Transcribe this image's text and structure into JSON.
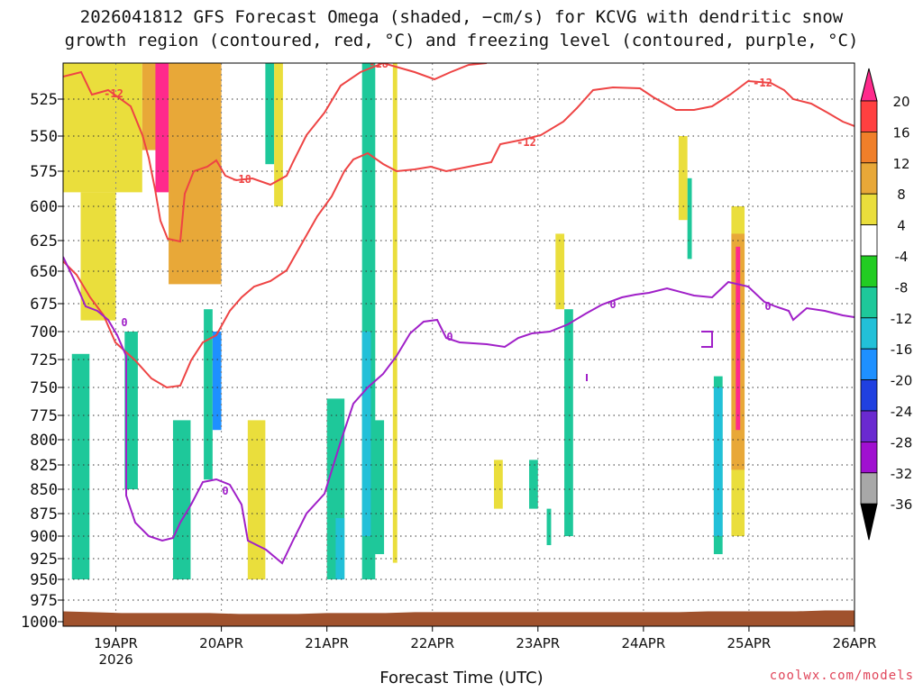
{
  "title": {
    "line1": "2026041812 GFS Forecast Omega (shaded, −cm/s) for KCVG with dendritic snow",
    "line2": "growth region (contoured, red, °C) and freezing level (contoured, purple, °C)"
  },
  "xlabel": "Forecast Time (UTC)",
  "credit": "coolwx.com/models",
  "chart_data": {
    "type": "heatmap",
    "x_ticks": [
      {
        "date": "2026-04-19T00",
        "label": "19APR",
        "sublabel": "2026"
      },
      {
        "date": "2026-04-20T00",
        "label": "20APR",
        "sublabel": ""
      },
      {
        "date": "2026-04-21T00",
        "label": "21APR",
        "sublabel": ""
      },
      {
        "date": "2026-04-22T00",
        "label": "22APR",
        "sublabel": ""
      },
      {
        "date": "2026-04-23T00",
        "label": "23APR",
        "sublabel": ""
      },
      {
        "date": "2026-04-24T00",
        "label": "24APR",
        "sublabel": ""
      },
      {
        "date": "2026-04-25T00",
        "label": "25APR",
        "sublabel": ""
      },
      {
        "date": "2026-04-26T00",
        "label": "26APR",
        "sublabel": ""
      }
    ],
    "x_start_hour": -12,
    "x_end_hour": 168,
    "y_ticks": [
      "525",
      "550",
      "575",
      "600",
      "625",
      "650",
      "675",
      "700",
      "725",
      "750",
      "775",
      "800",
      "825",
      "850",
      "875",
      "900",
      "925",
      "950",
      "975",
      "1000"
    ],
    "y_range_hpa": [
      500,
      1010
    ],
    "grid": true,
    "colorbar": {
      "labels": [
        "20",
        "16",
        "12",
        "8",
        "4",
        "-4",
        "-8",
        "-12",
        "-16",
        "-20",
        "-24",
        "-28",
        "-32",
        "-36"
      ],
      "colors": [
        "#ff2a8c",
        "#ff4040",
        "#f07f2a",
        "#e8a838",
        "#eade3c",
        "#ffffff",
        "#22cc22",
        "#1ec89a",
        "#22c0d8",
        "#1e90ff",
        "#2040e0",
        "#6a2ad0",
        "#a010d0",
        "#a8a8a8",
        "#000000"
      ]
    },
    "contours": {
      "dgz": {
        "color": "#ee4444",
        "labels": [
          "-12",
          "-18",
          "-18",
          "-12",
          "-12"
        ]
      },
      "freezing": {
        "color": "#a020c8",
        "labels": [
          "0",
          "0",
          "0",
          "0",
          "0"
        ]
      }
    },
    "terrain_color": "#a0522d",
    "terrain_hpa": [
      988,
      989,
      990,
      990,
      990,
      990,
      991,
      991,
      991,
      990,
      990,
      990,
      989,
      989,
      989,
      989,
      989,
      989,
      989,
      989,
      989,
      989,
      988,
      988,
      988,
      988,
      987,
      987
    ],
    "omega_cells": [
      {
        "t": [
          -12,
          6
        ],
        "p": [
          500,
          590
        ],
        "v": 6
      },
      {
        "t": [
          6,
          12
        ],
        "p": [
          500,
          560
        ],
        "v": 10
      },
      {
        "t": [
          12,
          24
        ],
        "p": [
          500,
          660
        ],
        "v": 10
      },
      {
        "t": [
          9,
          12
        ],
        "p": [
          500,
          590
        ],
        "v": 20
      },
      {
        "t": [
          -8,
          0
        ],
        "p": [
          590,
          690
        ],
        "v": 6
      },
      {
        "t": [
          2,
          5
        ],
        "p": [
          700,
          850
        ],
        "v": -8
      },
      {
        "t": [
          -10,
          -6
        ],
        "p": [
          720,
          950
        ],
        "v": -8
      },
      {
        "t": [
          20,
          22
        ],
        "p": [
          680,
          840
        ],
        "v": -8
      },
      {
        "t": [
          22,
          24
        ],
        "p": [
          700,
          790
        ],
        "v": -16
      },
      {
        "t": [
          13,
          17
        ],
        "p": [
          780,
          950
        ],
        "v": -8
      },
      {
        "t": [
          34,
          36
        ],
        "p": [
          500,
          570
        ],
        "v": -8
      },
      {
        "t": [
          36,
          38
        ],
        "p": [
          500,
          600
        ],
        "v": 6
      },
      {
        "t": [
          30,
          34
        ],
        "p": [
          780,
          950
        ],
        "v": 6
      },
      {
        "t": [
          48,
          52
        ],
        "p": [
          760,
          950
        ],
        "v": -8
      },
      {
        "t": [
          50,
          52
        ],
        "p": [
          880,
          950
        ],
        "v": -12
      },
      {
        "t": [
          56,
          59
        ],
        "p": [
          500,
          950
        ],
        "v": -8
      },
      {
        "t": [
          56,
          58
        ],
        "p": [
          700,
          900
        ],
        "v": -12
      },
      {
        "t": [
          58,
          61
        ],
        "p": [
          780,
          920
        ],
        "v": -8
      },
      {
        "t": [
          63,
          64
        ],
        "p": [
          500,
          930
        ],
        "v": 6
      },
      {
        "t": [
          86,
          88
        ],
        "p": [
          820,
          870
        ],
        "v": 6
      },
      {
        "t": [
          94,
          96
        ],
        "p": [
          820,
          870
        ],
        "v": -8
      },
      {
        "t": [
          98,
          99
        ],
        "p": [
          870,
          910
        ],
        "v": -8
      },
      {
        "t": [
          102,
          104
        ],
        "p": [
          680,
          900
        ],
        "v": -8
      },
      {
        "t": [
          100,
          102
        ],
        "p": [
          620,
          680
        ],
        "v": 6
      },
      {
        "t": [
          130,
          131
        ],
        "p": [
          580,
          640
        ],
        "v": -8
      },
      {
        "t": [
          128,
          130
        ],
        "p": [
          550,
          610
        ],
        "v": 6
      },
      {
        "t": [
          136,
          138
        ],
        "p": [
          740,
          920
        ],
        "v": -8
      },
      {
        "t": [
          136,
          138
        ],
        "p": [
          750,
          900
        ],
        "v": -12
      },
      {
        "t": [
          140,
          143
        ],
        "p": [
          600,
          900
        ],
        "v": 6
      },
      {
        "t": [
          140,
          143
        ],
        "p": [
          620,
          830
        ],
        "v": 10
      },
      {
        "t": [
          141,
          142
        ],
        "p": [
          630,
          790
        ],
        "v": 20
      }
    ]
  }
}
